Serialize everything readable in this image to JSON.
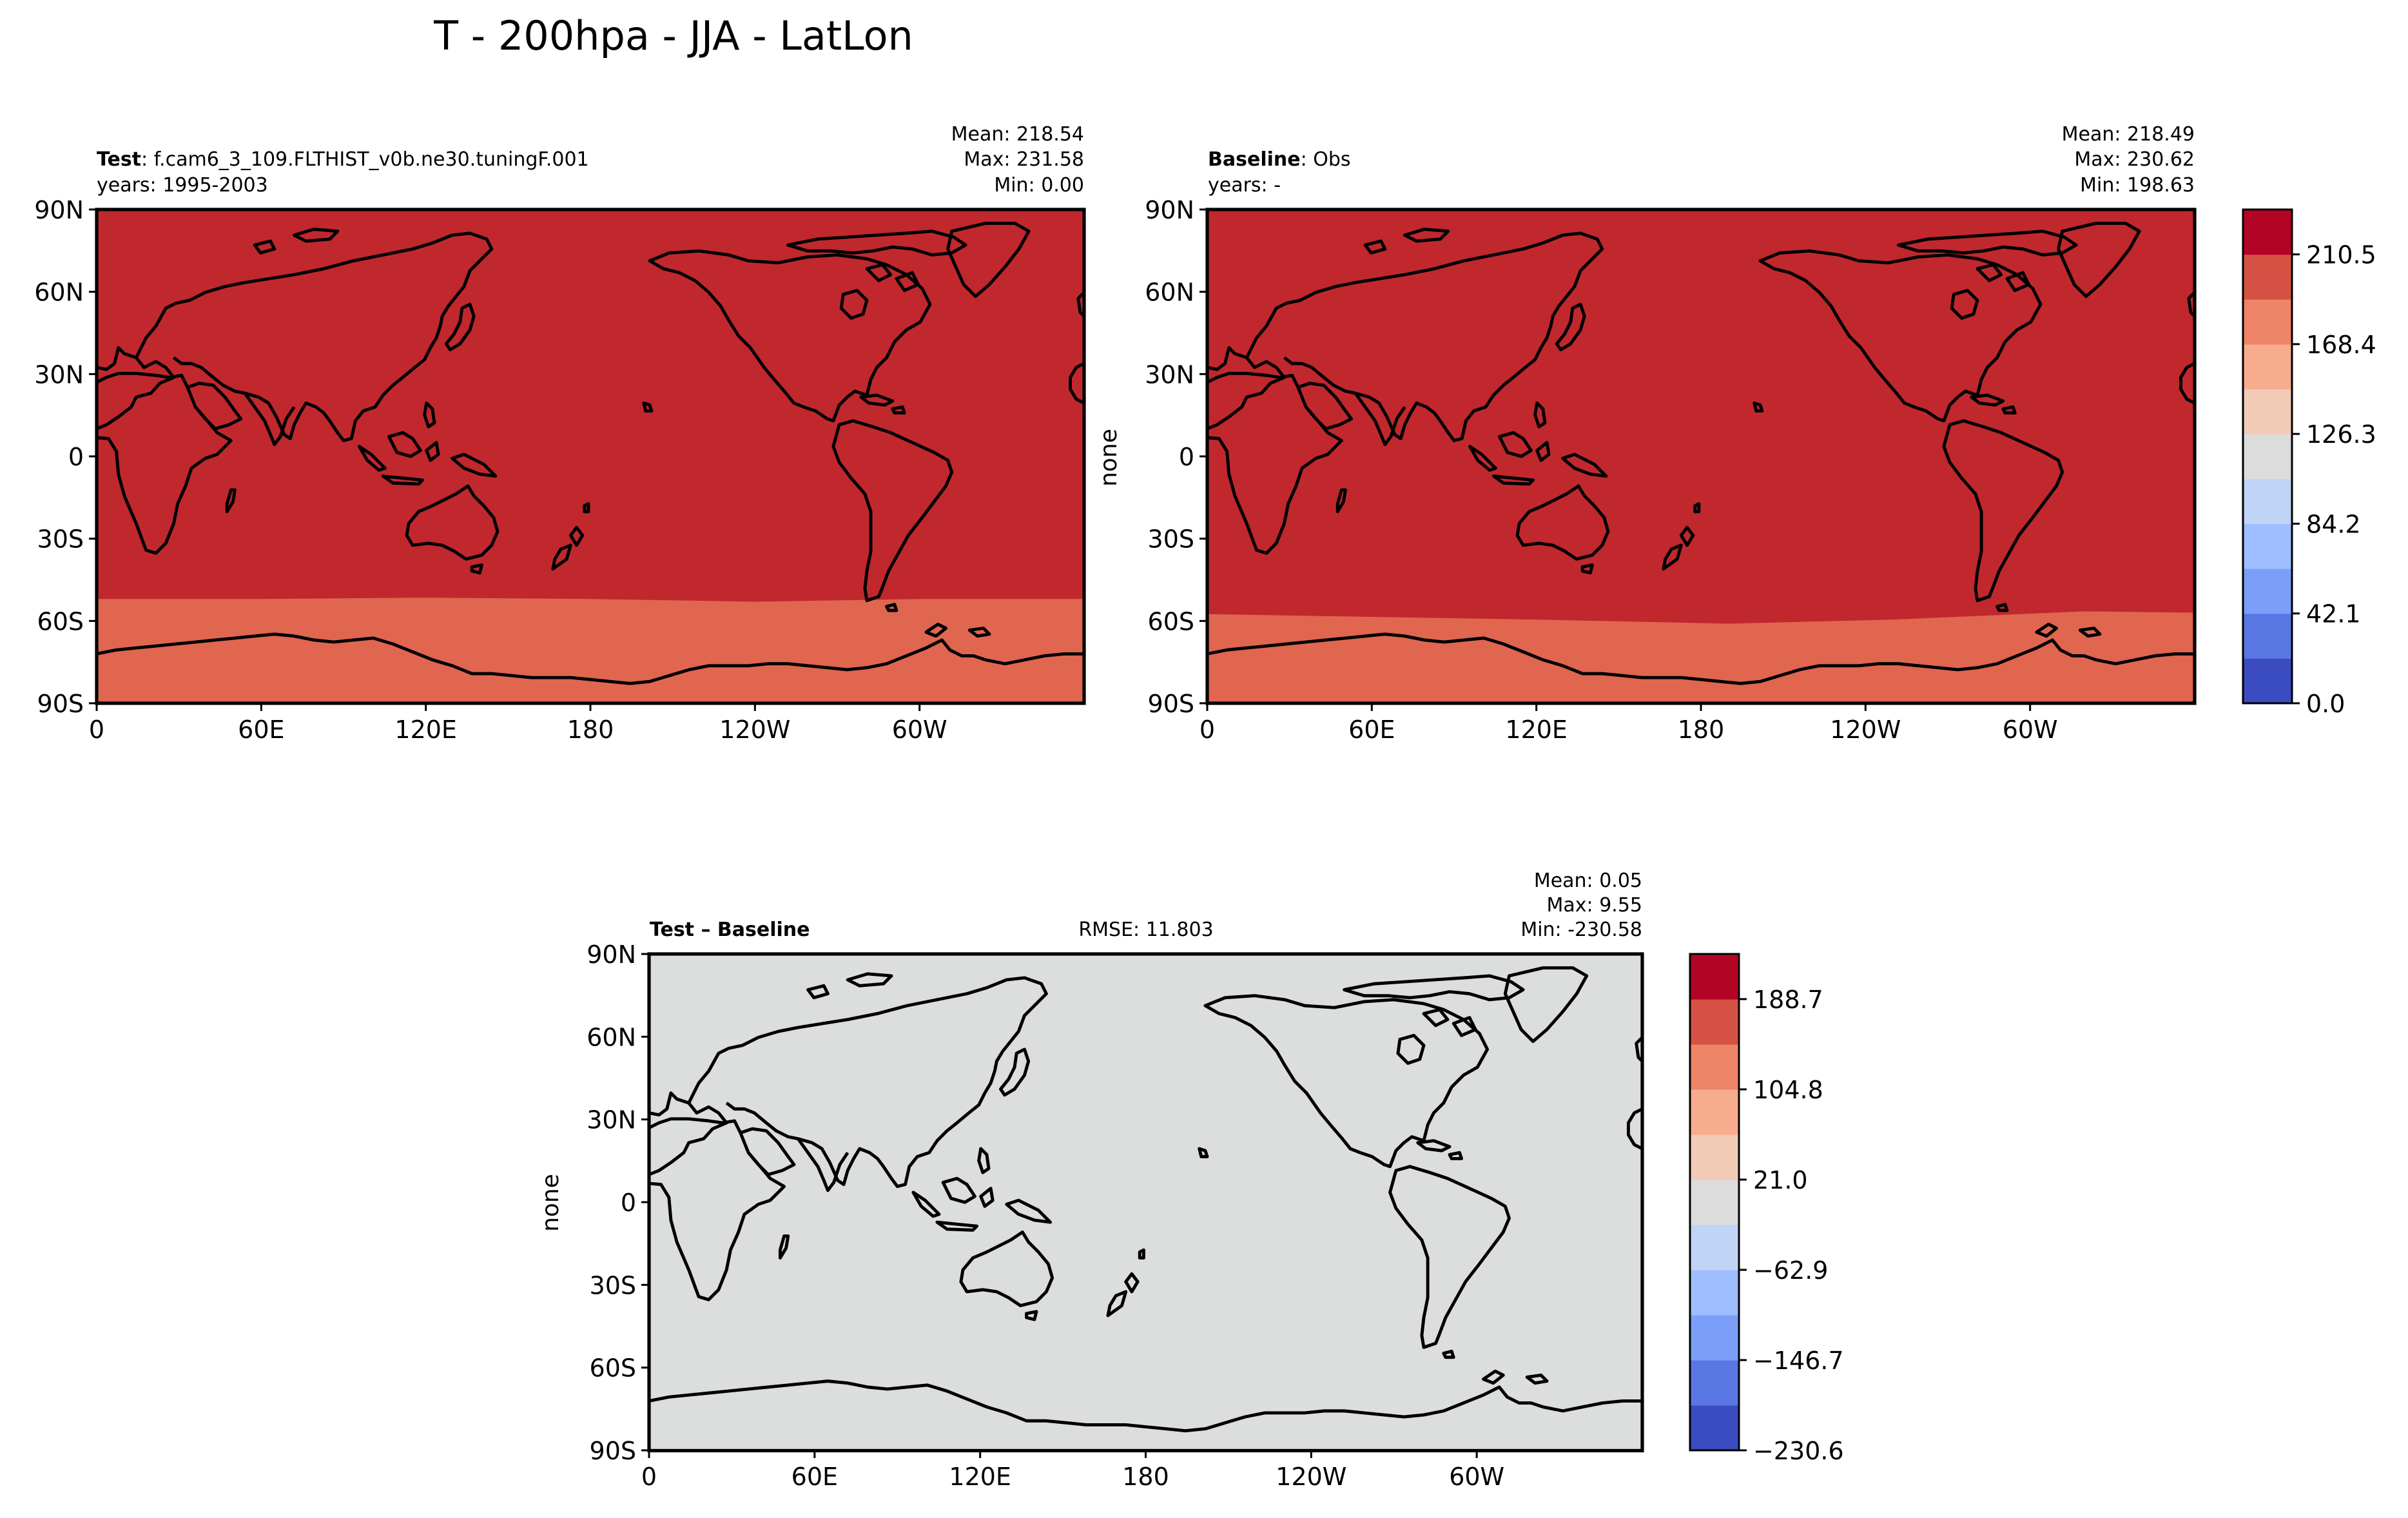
{
  "figure": {
    "title": "T - 200hpa - JJA - LatLon"
  },
  "panels": {
    "test": {
      "label_bold": "Test",
      "label_rest": ": f.cam6_3_109.FLTHIST_v0b.ne30.tuningF.001",
      "years": "years: 1995-2003",
      "stats": {
        "mean": "Mean: 218.54",
        "max": "Max: 231.58",
        "min": "Min:  0.00"
      },
      "ylabel": ""
    },
    "baseline": {
      "label_bold": "Baseline",
      "label_rest": ": Obs",
      "years": "years: -",
      "stats": {
        "mean": "Mean: 218.49",
        "max": "Max: 230.62",
        "min": "Min: 198.63"
      },
      "ylabel": "none"
    },
    "diff": {
      "label_bold": "Test – Baseline",
      "rmse": "RMSE: 11.803",
      "stats": {
        "mean": "Mean:  0.05",
        "max": "Max:  9.55",
        "min": "Min: -230.58"
      },
      "ylabel": "none"
    }
  },
  "chart_data": [
    {
      "type": "heatmap",
      "id": "test",
      "projection": "PlateCarree (central longitude 180)",
      "xticks": [
        "0",
        "60E",
        "120E",
        "180",
        "120W",
        "60W"
      ],
      "yticks": [
        "90N",
        "60N",
        "30N",
        "0",
        "30S",
        "60S",
        "90S"
      ],
      "xlim": [
        0,
        360
      ],
      "ylim": [
        -90,
        90
      ],
      "levels": [
        0.0,
        21.05,
        42.1,
        63.15,
        84.2,
        105.25,
        126.3,
        147.35,
        168.4,
        189.45,
        210.5,
        231.55
      ],
      "field_bands": [
        {
          "lat_range": [
            -52,
            90
          ],
          "value_range": [
            210.5,
            231.55
          ],
          "color": "#c0282d"
        },
        {
          "lat_range": [
            -90,
            -52
          ],
          "value_range": [
            189.45,
            210.5
          ],
          "color": "#e06650"
        }
      ],
      "band_boundary_lat": [
        [
          0,
          -52
        ],
        [
          60,
          -52
        ],
        [
          120,
          -51.5
        ],
        [
          180,
          -52
        ],
        [
          240,
          -53
        ],
        [
          300,
          -52
        ],
        [
          360,
          -52
        ]
      ]
    },
    {
      "type": "heatmap",
      "id": "baseline",
      "projection": "PlateCarree (central longitude 180)",
      "xticks": [
        "0",
        "60E",
        "120E",
        "180",
        "120W",
        "60W"
      ],
      "yticks": [
        "90N",
        "60N",
        "30N",
        "0",
        "30S",
        "60S",
        "90S"
      ],
      "xlim": [
        0,
        360
      ],
      "ylim": [
        -90,
        90
      ],
      "field_bands": [
        {
          "lat_range": [
            -58,
            90
          ],
          "value_range": [
            210.5,
            231.55
          ],
          "color": "#c0282d"
        },
        {
          "lat_range": [
            -90,
            -58
          ],
          "value_range": [
            189.45,
            210.5
          ],
          "color": "#e06650"
        }
      ],
      "band_boundary_lat": [
        [
          0,
          -57.5
        ],
        [
          60,
          -58.5
        ],
        [
          120,
          -59.5
        ],
        [
          190,
          -61
        ],
        [
          250,
          -59.5
        ],
        [
          320,
          -56.5
        ],
        [
          360,
          -57
        ]
      ]
    },
    {
      "type": "heatmap",
      "id": "diff",
      "projection": "PlateCarree (central longitude 180)",
      "xticks": [
        "0",
        "60E",
        "120E",
        "180",
        "120W",
        "60W"
      ],
      "yticks": [
        "90N",
        "60N",
        "30N",
        "0",
        "30S",
        "60S",
        "90S"
      ],
      "xlim": [
        0,
        360
      ],
      "ylim": [
        -90,
        90
      ],
      "levels": [
        -230.6,
        -188.65,
        -146.7,
        -104.75,
        -62.9,
        -20.95,
        21.0,
        62.95,
        104.8,
        146.75,
        188.7,
        230.6
      ],
      "field_bands": [
        {
          "lat_range": [
            -90,
            90
          ],
          "value_range": [
            -20.95,
            21.0
          ],
          "color": "#dcdddd"
        }
      ]
    }
  ],
  "colorbars": {
    "main": {
      "tick_labels": [
        "0.0",
        "42.1",
        "84.2",
        "126.3",
        "168.4",
        "210.5"
      ],
      "colors": [
        "#3b4cc0",
        "#5977e3",
        "#7b9ff9",
        "#9ebeff",
        "#c0d4f5",
        "#dddcdc",
        "#f2cbb7",
        "#f7ac8e",
        "#ee8468",
        "#d65244",
        "#b40426"
      ]
    },
    "diff": {
      "tick_labels": [
        "−230.6",
        "−146.7",
        "−62.9",
        "21.0",
        "104.8",
        "188.7"
      ],
      "colors": [
        "#3b4cc0",
        "#5977e3",
        "#7b9ff9",
        "#9ebeff",
        "#c0d4f5",
        "#dddcdc",
        "#f2cbb7",
        "#f7ac8e",
        "#ee8468",
        "#d65244",
        "#b40426"
      ]
    }
  }
}
